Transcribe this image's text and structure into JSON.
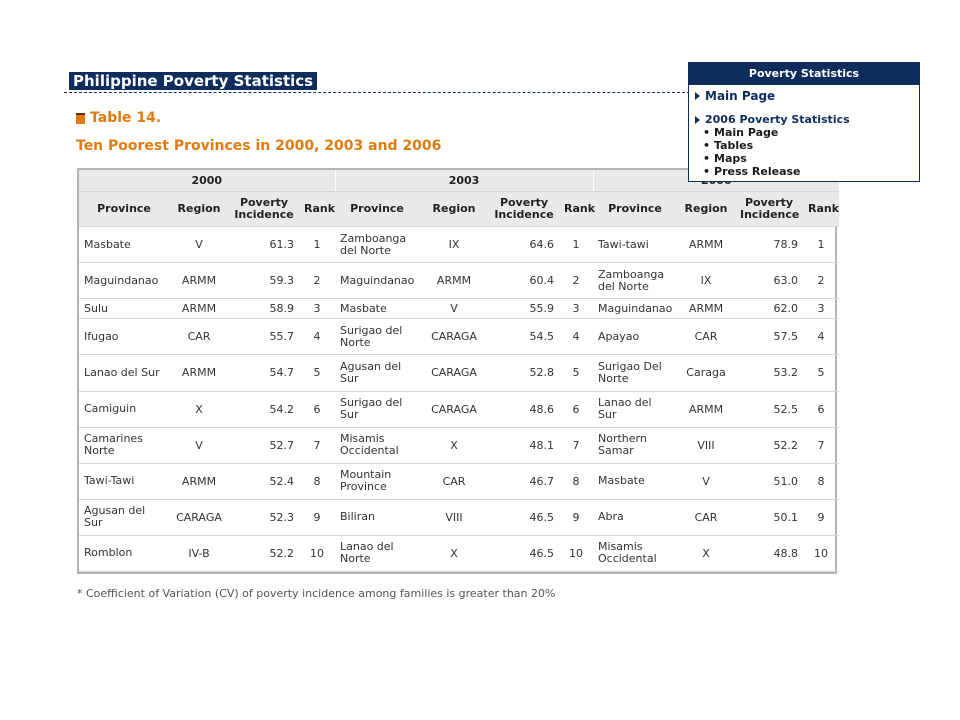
{
  "page": {
    "site_title": "Philippine Poverty Statistics",
    "table_label": "Table 14.",
    "table_title": "Ten Poorest Provinces in 2000, 2003 and 2006",
    "footnote": "* Coefficient of Variation (CV) of poverty incidence among families is greater than 20%"
  },
  "nav": {
    "header": "Poverty Statistics",
    "main_page": "Main Page",
    "section": "2006 Poverty Statistics",
    "sub_links": [
      "Main Page",
      "Tables",
      "Maps",
      "Press Release"
    ]
  },
  "table": {
    "years": [
      "2000",
      "2003",
      "2006"
    ],
    "columns": [
      "Province",
      "Region",
      "Poverty Incidence",
      "Rank"
    ],
    "rows": [
      [
        [
          "Masbate",
          "V",
          "61.3",
          "1"
        ],
        [
          "Zamboanga del Norte",
          "IX",
          "64.6",
          "1"
        ],
        [
          "Tawi-tawi",
          "ARMM",
          "78.9",
          "1"
        ]
      ],
      [
        [
          "Maguindanao",
          "ARMM",
          "59.3",
          "2"
        ],
        [
          "Maguindanao",
          "ARMM",
          "60.4",
          "2"
        ],
        [
          "Zamboanga del Norte",
          "IX",
          "63.0",
          "2"
        ]
      ],
      [
        [
          "Sulu",
          "ARMM",
          "58.9",
          "3"
        ],
        [
          "Masbate",
          "V",
          "55.9",
          "3"
        ],
        [
          "Maguindanao",
          "ARMM",
          "62.0",
          "3"
        ]
      ],
      [
        [
          "Ifugao",
          "CAR",
          "55.7",
          "4"
        ],
        [
          "Surigao del Norte",
          "CARAGA",
          "54.5",
          "4"
        ],
        [
          "Apayao",
          "CAR",
          "57.5",
          "4"
        ]
      ],
      [
        [
          "Lanao del Sur",
          "ARMM",
          "54.7",
          "5"
        ],
        [
          "Agusan del Sur",
          "CARAGA",
          "52.8",
          "5"
        ],
        [
          "Surigao Del Norte",
          "Caraga",
          "53.2",
          "5"
        ]
      ],
      [
        [
          "Camiguin",
          "X",
          "54.2",
          "6"
        ],
        [
          "Surigao del Sur",
          "CARAGA",
          "48.6",
          "6"
        ],
        [
          "Lanao del Sur",
          "ARMM",
          "52.5",
          "6"
        ]
      ],
      [
        [
          "Camarines Norte",
          "V",
          "52.7",
          "7"
        ],
        [
          "Misamis Occidental",
          "X",
          "48.1",
          "7"
        ],
        [
          "Northern Samar",
          "VIII",
          "52.2",
          "7"
        ]
      ],
      [
        [
          "Tawi-Tawi",
          "ARMM",
          "52.4",
          "8"
        ],
        [
          "Mountain Province",
          "CAR",
          "46.7",
          "8"
        ],
        [
          "Masbate",
          "V",
          "51.0",
          "8"
        ]
      ],
      [
        [
          "Agusan del Sur",
          "CARAGA",
          "52.3",
          "9"
        ],
        [
          "Biliran",
          "VIII",
          "46.5",
          "9"
        ],
        [
          "Abra",
          "CAR",
          "50.1",
          "9"
        ]
      ],
      [
        [
          "Romblon",
          "IV-B",
          "52.2",
          "10"
        ],
        [
          "Lanao del Norte",
          "X",
          "46.5",
          "10"
        ],
        [
          "Misamis Occidental",
          "X",
          "48.8",
          "10"
        ]
      ]
    ]
  }
}
